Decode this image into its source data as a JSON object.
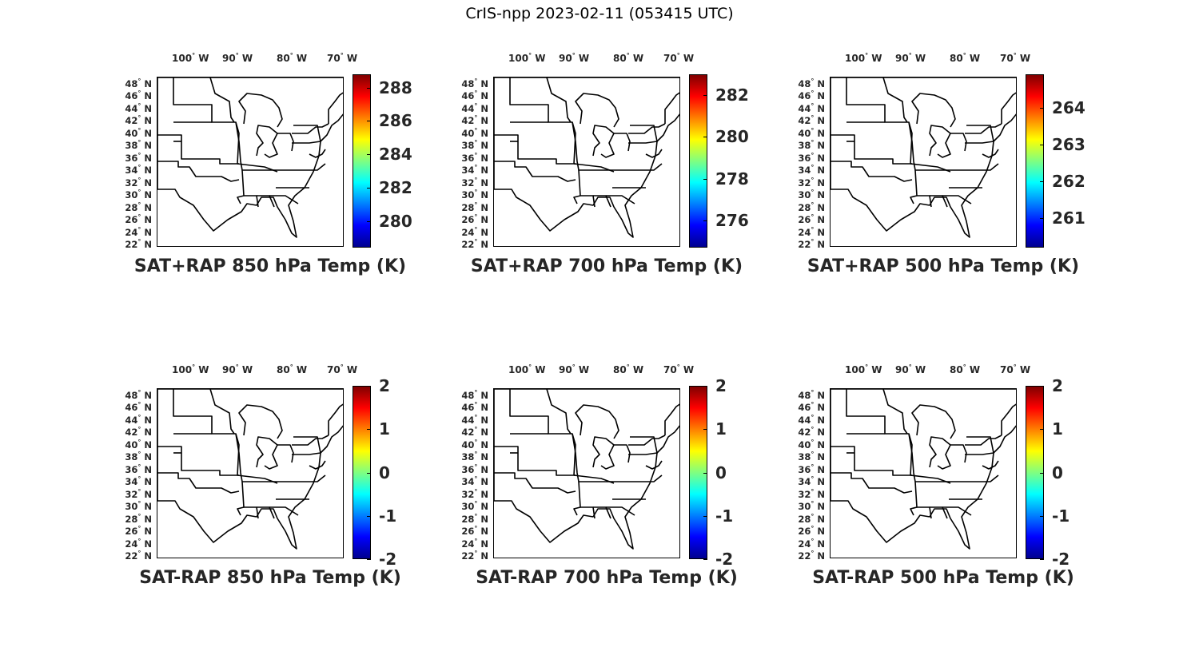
{
  "title": "CrIS-npp 2023-02-11 (053415 UTC)",
  "lon_ticks": [
    "100",
    "90",
    "80",
    "70"
  ],
  "lon_suffix": "W",
  "lat_ticks": [
    "48",
    "46",
    "44",
    "42",
    "40",
    "38",
    "36",
    "34",
    "32",
    "30",
    "28",
    "26",
    "24",
    "22"
  ],
  "lat_suffix": "N",
  "chart_data": [
    {
      "type": "heatmap",
      "title": "SAT+RAP 850 hPa Temp (K)",
      "colorbar_ticks": [
        "288",
        "286",
        "284",
        "282",
        "280"
      ],
      "colorbar_tick_values": [
        288,
        286,
        284,
        282,
        280
      ],
      "clim": [
        278.4,
        288.8
      ],
      "colormap": "jet",
      "xlim": [
        -107,
        -67
      ],
      "ylim": [
        22,
        50
      ],
      "xlabel": "",
      "ylabel": ""
    },
    {
      "type": "heatmap",
      "title": "SAT+RAP 700 hPa Temp (K)",
      "colorbar_ticks": [
        "282",
        "280",
        "278",
        "276"
      ],
      "colorbar_tick_values": [
        282,
        280,
        278,
        276
      ],
      "clim": [
        274.7,
        283.0
      ],
      "colormap": "jet",
      "xlim": [
        -107,
        -67
      ],
      "ylim": [
        22,
        50
      ],
      "xlabel": "",
      "ylabel": ""
    },
    {
      "type": "heatmap",
      "title": "SAT+RAP 500 hPa Temp (K)",
      "colorbar_ticks": [
        "264",
        "263",
        "262",
        "261"
      ],
      "colorbar_tick_values": [
        264,
        263,
        262,
        261
      ],
      "clim": [
        260.2,
        264.9
      ],
      "colormap": "jet",
      "xlim": [
        -107,
        -67
      ],
      "ylim": [
        22,
        50
      ],
      "xlabel": "",
      "ylabel": ""
    },
    {
      "type": "heatmap",
      "title": "SAT-RAP 850 hPa Temp (K)",
      "colorbar_ticks": [
        "2",
        "1",
        "0",
        "-1",
        "-2"
      ],
      "colorbar_tick_values": [
        2,
        1,
        0,
        -1,
        -2
      ],
      "clim": [
        -2,
        2
      ],
      "colormap": "jet",
      "xlim": [
        -107,
        -67
      ],
      "ylim": [
        22,
        50
      ],
      "xlabel": "",
      "ylabel": ""
    },
    {
      "type": "heatmap",
      "title": "SAT-RAP 700 hPa Temp (K)",
      "colorbar_ticks": [
        "2",
        "1",
        "0",
        "-1",
        "-2"
      ],
      "colorbar_tick_values": [
        2,
        1,
        0,
        -1,
        -2
      ],
      "clim": [
        -2,
        2
      ],
      "colormap": "jet",
      "xlim": [
        -107,
        -67
      ],
      "ylim": [
        22,
        50
      ],
      "xlabel": "",
      "ylabel": ""
    },
    {
      "type": "heatmap",
      "title": "SAT-RAP 500 hPa Temp (K)",
      "colorbar_ticks": [
        "2",
        "1",
        "0",
        "-1",
        "-2"
      ],
      "colorbar_tick_values": [
        2,
        1,
        0,
        -1,
        -2
      ],
      "clim": [
        -2,
        2
      ],
      "colormap": "jet",
      "xlim": [
        -107,
        -67
      ],
      "ylim": [
        22,
        50
      ],
      "xlabel": "",
      "ylabel": ""
    }
  ]
}
